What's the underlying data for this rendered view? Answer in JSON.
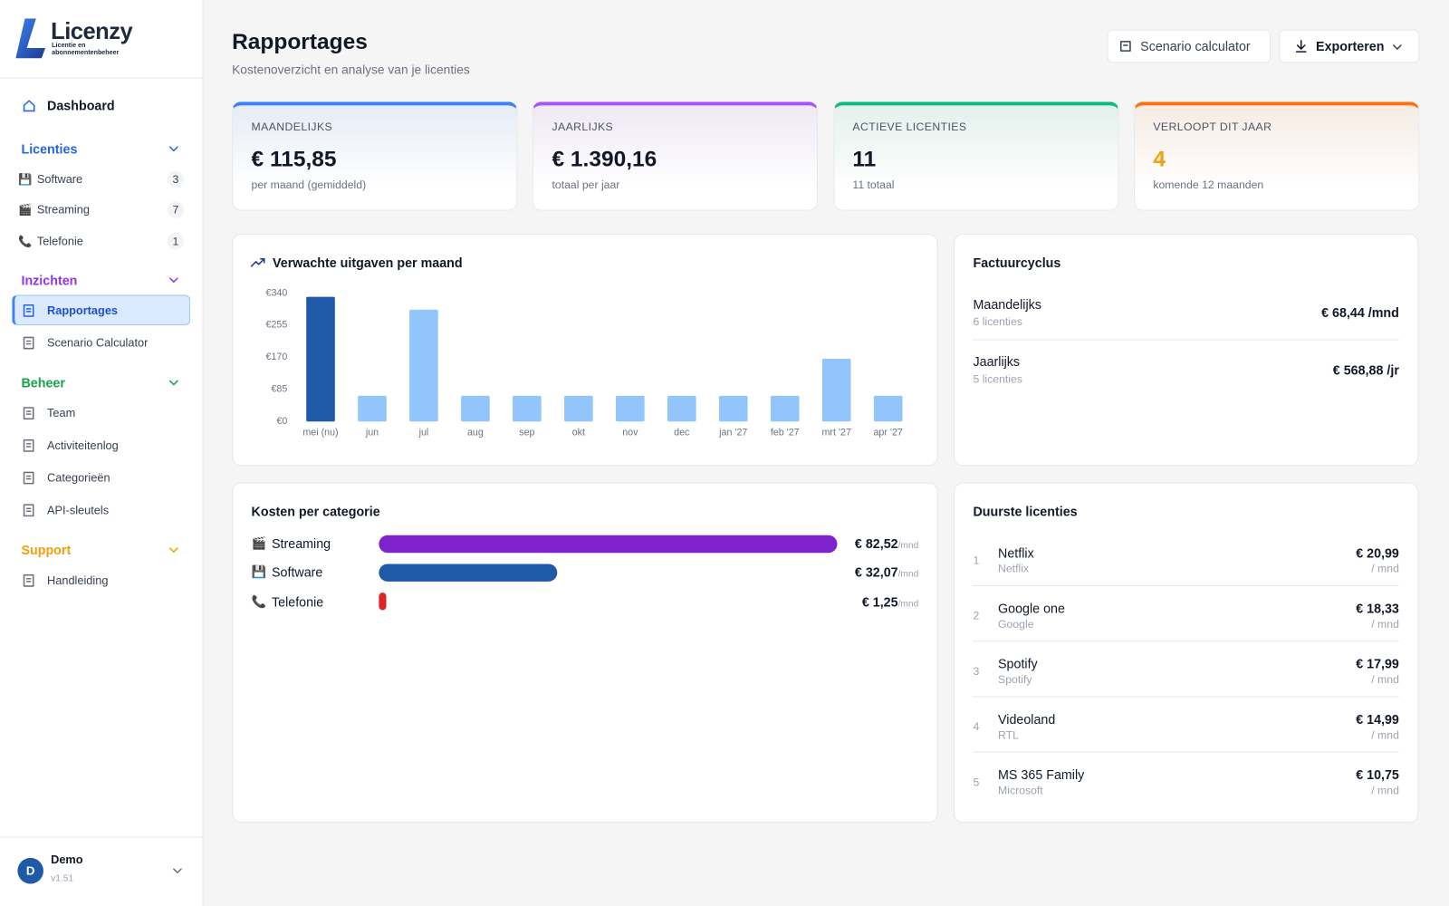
{
  "sidebar": {
    "brand": {
      "name": "Licenzy",
      "tagline": "Licentie en abonnementenbeheer"
    },
    "dashboard": "Dashboard",
    "groups": [
      {
        "title": "Licenties",
        "color": "#2563eb",
        "items": [
          {
            "icon": "💾",
            "label": "Software",
            "count": 3
          },
          {
            "icon": "🎬",
            "label": "Streaming",
            "count": 7
          },
          {
            "icon": "📞",
            "label": "Telefonie",
            "count": 1
          }
        ]
      },
      {
        "title": "Inzichten",
        "color": "#9333ea",
        "items": [
          {
            "label": "Rapportages",
            "active": true
          },
          {
            "label": "Scenario Calculator"
          }
        ]
      },
      {
        "title": "Beheer",
        "color": "#16a34a",
        "items": [
          {
            "label": "Team"
          },
          {
            "label": "Activiteitenlog"
          },
          {
            "label": "Categorieën"
          },
          {
            "label": "API-sleutels"
          }
        ]
      },
      {
        "title": "Support",
        "color": "#f59e0b",
        "items": [
          {
            "label": "Handleiding"
          }
        ]
      }
    ],
    "user": {
      "initial": "D",
      "name": "Demo",
      "version": "v1.51"
    }
  },
  "header": {
    "title": "Rapportages",
    "subtitle": "Kostenoverzicht en analyse van je licenties",
    "buttons": [
      "Scenario calculator",
      "Exporteren"
    ]
  },
  "stats": [
    {
      "label": "MAANDELIJKS",
      "value": "€ 115,85",
      "note": "per maand (gemiddeld)",
      "color": "#3b82f6"
    },
    {
      "label": "JAARLIJKS",
      "value": "€ 1.390,16",
      "note": "totaal per jaar",
      "color": "#a855f7"
    },
    {
      "label": "ACTIEVE LICENTIES",
      "value": "11",
      "note": "11 totaal",
      "color": "#10b981"
    },
    {
      "label": "VERLOOPT DIT JAAR",
      "value": "4",
      "note": "komende 12 maanden",
      "color": "#f97316",
      "value_color": "#f59e0b"
    }
  ],
  "spending_chart": {
    "type": "bar",
    "title": "Verwachte uitgaven per maand",
    "categories": [
      "mei (nu)",
      "jun",
      "jul",
      "aug",
      "sep",
      "okt",
      "nov",
      "dec",
      "jan '27",
      "feb '27",
      "mrt '27",
      "apr '27"
    ],
    "values": [
      330,
      68,
      296,
      68,
      68,
      68,
      68,
      68,
      68,
      68,
      166,
      68
    ],
    "color": "#93c5fd",
    "highlight_color": "#1e5aa8",
    "highlight_index": 0,
    "ylim": [
      0,
      340
    ],
    "yticks": [
      {
        "value": 0,
        "label": "€0"
      },
      {
        "value": 85,
        "label": "€85"
      },
      {
        "value": 170,
        "label": "€170"
      },
      {
        "value": 255,
        "label": "€255"
      },
      {
        "value": 340,
        "label": "€340"
      }
    ]
  },
  "billing_cycle": {
    "title": "Factuurcyclus",
    "rows": [
      {
        "name": "Maandelijks",
        "count": "6 licenties",
        "amount": "€ 68,44",
        "unit": "/mnd"
      },
      {
        "name": "Jaarlijks",
        "count": "5 licenties",
        "amount": "€ 568,88",
        "unit": "/jr"
      }
    ]
  },
  "category_costs": {
    "type": "bar",
    "orientation": "horizontal",
    "title": "Kosten per categorie",
    "unit": "/mnd",
    "categories": [
      "Streaming",
      "Software",
      "Telefonie"
    ],
    "icons": [
      "🎬",
      "💾",
      "📞"
    ],
    "values": [
      82.52,
      32.07,
      1.25
    ],
    "value_labels": [
      "€ 82,52",
      "€ 32,07",
      "€ 1,25"
    ],
    "colors": [
      "#7e22ce",
      "#1e5aa8",
      "#dc2626"
    ]
  },
  "top_licenses": {
    "title": "Duurste licenties",
    "unit": "/ mnd",
    "rows": [
      {
        "rank": 1,
        "name": "Netflix",
        "vendor": "Netflix",
        "price": "€ 20,99"
      },
      {
        "rank": 2,
        "name": "Google one",
        "vendor": "Google",
        "price": "€ 18,33"
      },
      {
        "rank": 3,
        "name": "Spotify",
        "vendor": "Spotify",
        "price": "€ 17,99"
      },
      {
        "rank": 4,
        "name": "Videoland",
        "vendor": "RTL",
        "price": "€ 14,99"
      },
      {
        "rank": 5,
        "name": "MS 365 Family",
        "vendor": "Microsoft",
        "price": "€ 10,75"
      }
    ]
  }
}
